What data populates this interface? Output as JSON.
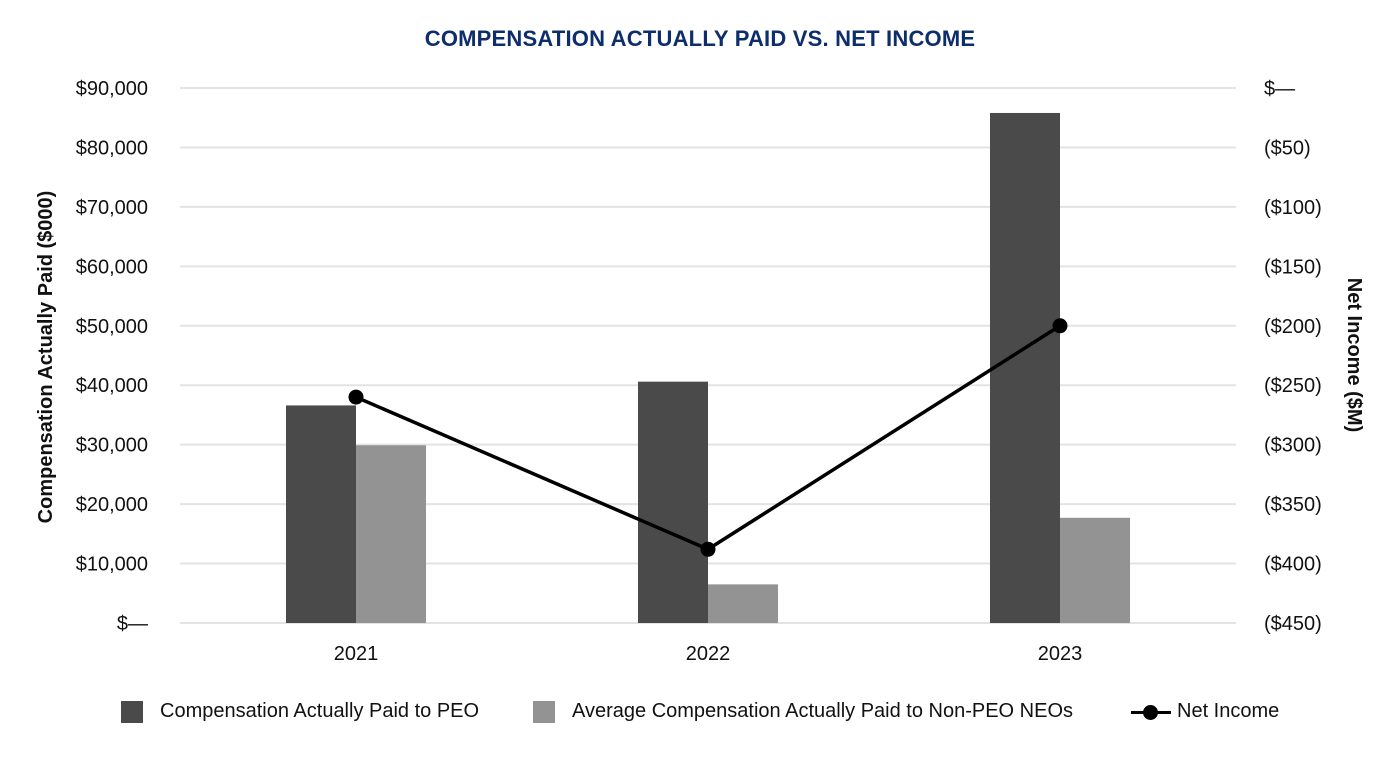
{
  "chart_data": {
    "type": "bar",
    "title": "COMPENSATION ACTUALLY PAID VS. NET INCOME",
    "categories": [
      "2021",
      "2022",
      "2023"
    ],
    "series": [
      {
        "name": "Compensation Actually Paid to PEO",
        "type": "bar",
        "axis": "left",
        "color": "#4a4a4a",
        "values": [
          36600,
          40600,
          85800
        ]
      },
      {
        "name": "Average Compensation Actually Paid to Non-PEO NEOs",
        "type": "bar",
        "axis": "left",
        "color": "#939393",
        "values": [
          29900,
          6500,
          17700
        ]
      },
      {
        "name": "Net Income",
        "type": "line",
        "axis": "right",
        "color": "#000000",
        "values": [
          -260,
          -388,
          -200
        ]
      }
    ],
    "ylabel": "Compensation Actually Paid ($000)",
    "ylim": [
      0,
      90000
    ],
    "yticks": [
      0,
      10000,
      20000,
      30000,
      40000,
      50000,
      60000,
      70000,
      80000,
      90000
    ],
    "ytick_labels": [
      "$—",
      "$10,000",
      "$20,000",
      "$30,000",
      "$40,000",
      "$50,000",
      "$60,000",
      "$70,000",
      "$80,000",
      "$90,000"
    ],
    "y2label": "Net Income ($M)",
    "y2lim": [
      -450,
      0
    ],
    "y2ticks": [
      -450,
      -400,
      -350,
      -300,
      -250,
      -200,
      -150,
      -100,
      -50,
      0
    ],
    "y2tick_labels": [
      "($450)",
      "($400)",
      "($350)",
      "($300)",
      "($250)",
      "($200)",
      "($150)",
      "($100)",
      "($50)",
      "$—"
    ],
    "grid": true,
    "legend_position": "bottom"
  }
}
